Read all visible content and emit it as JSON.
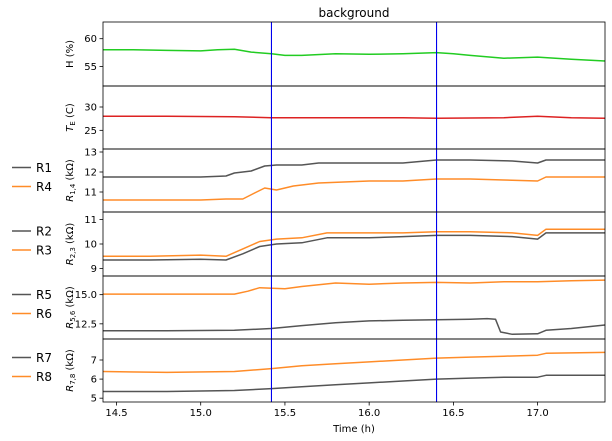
{
  "chart_data": {
    "type": "line",
    "title": "background",
    "xlabel": "Time (h)",
    "xlim": [
      14.42,
      17.4
    ],
    "x_ticks": [
      14.5,
      15.0,
      15.5,
      16.0,
      16.5,
      17.0
    ],
    "x_tick_labels": [
      "14.5",
      "15.0",
      "15.5",
      "16.0",
      "16.5",
      "17.0"
    ],
    "vlines": [
      15.42,
      16.4
    ],
    "vline_color": "#0000ee",
    "grid": false,
    "legend_position": "left",
    "panels": [
      {
        "id": "humidity",
        "ylabel": "H (%)",
        "ylim": [
          51.5,
          63.0
        ],
        "y_ticks": [
          55,
          60
        ],
        "y_tick_labels": [
          "55",
          "60"
        ],
        "legend": [],
        "series": [
          {
            "name": "",
            "color": "#22cc22",
            "points": [
              [
                14.42,
                58.0
              ],
              [
                14.6,
                58.0
              ],
              [
                14.8,
                57.9
              ],
              [
                15.0,
                57.8
              ],
              [
                15.1,
                58.0
              ],
              [
                15.2,
                58.1
              ],
              [
                15.3,
                57.6
              ],
              [
                15.42,
                57.3
              ],
              [
                15.5,
                57.0
              ],
              [
                15.6,
                57.0
              ],
              [
                15.8,
                57.3
              ],
              [
                16.0,
                57.2
              ],
              [
                16.2,
                57.3
              ],
              [
                16.4,
                57.5
              ],
              [
                16.5,
                57.3
              ],
              [
                16.6,
                57.0
              ],
              [
                16.8,
                56.5
              ],
              [
                17.0,
                56.7
              ],
              [
                17.2,
                56.3
              ],
              [
                17.4,
                56.0
              ]
            ]
          }
        ]
      },
      {
        "id": "temperature",
        "ylabel": "T_E (C)",
        "ylim": [
          21.0,
          34.5
        ],
        "y_ticks": [
          25,
          30
        ],
        "y_tick_labels": [
          "25",
          "30"
        ],
        "legend": [],
        "series": [
          {
            "name": "",
            "color": "#dd2222",
            "points": [
              [
                14.42,
                28.0
              ],
              [
                14.8,
                28.0
              ],
              [
                15.2,
                27.9
              ],
              [
                15.42,
                27.7
              ],
              [
                15.8,
                27.7
              ],
              [
                16.2,
                27.7
              ],
              [
                16.4,
                27.6
              ],
              [
                16.8,
                27.7
              ],
              [
                17.0,
                28.0
              ],
              [
                17.2,
                27.7
              ],
              [
                17.4,
                27.6
              ]
            ]
          }
        ]
      },
      {
        "id": "r14",
        "ylabel": "R_1,4 (kΩ)",
        "ylim": [
          10.0,
          13.15
        ],
        "y_ticks": [
          11,
          12,
          13
        ],
        "y_tick_labels": [
          "11",
          "12",
          "13"
        ],
        "legend": [
          "R1",
          "R4"
        ],
        "series": [
          {
            "name": "R1",
            "color": "#555555",
            "points": [
              [
                14.42,
                11.75
              ],
              [
                14.7,
                11.75
              ],
              [
                15.0,
                11.75
              ],
              [
                15.15,
                11.8
              ],
              [
                15.2,
                11.95
              ],
              [
                15.3,
                12.05
              ],
              [
                15.38,
                12.3
              ],
              [
                15.45,
                12.35
              ],
              [
                15.6,
                12.35
              ],
              [
                15.7,
                12.45
              ],
              [
                16.0,
                12.45
              ],
              [
                16.2,
                12.45
              ],
              [
                16.4,
                12.6
              ],
              [
                16.6,
                12.6
              ],
              [
                16.85,
                12.55
              ],
              [
                17.0,
                12.45
              ],
              [
                17.05,
                12.6
              ],
              [
                17.2,
                12.6
              ],
              [
                17.4,
                12.6
              ]
            ]
          },
          {
            "name": "R4",
            "color": "#ff8c28",
            "points": [
              [
                14.42,
                10.6
              ],
              [
                14.7,
                10.6
              ],
              [
                15.0,
                10.6
              ],
              [
                15.15,
                10.65
              ],
              [
                15.25,
                10.65
              ],
              [
                15.32,
                10.95
              ],
              [
                15.38,
                11.2
              ],
              [
                15.45,
                11.1
              ],
              [
                15.55,
                11.3
              ],
              [
                15.7,
                11.45
              ],
              [
                16.0,
                11.55
              ],
              [
                16.2,
                11.55
              ],
              [
                16.4,
                11.65
              ],
              [
                16.6,
                11.65
              ],
              [
                16.8,
                11.6
              ],
              [
                17.0,
                11.55
              ],
              [
                17.05,
                11.75
              ],
              [
                17.2,
                11.75
              ],
              [
                17.4,
                11.75
              ]
            ]
          }
        ]
      },
      {
        "id": "r23",
        "ylabel": "R_2,3 (kΩ)",
        "ylim": [
          8.7,
          11.3
        ],
        "y_ticks": [
          9,
          10,
          11
        ],
        "y_tick_labels": [
          "9",
          "10",
          "11"
        ],
        "legend": [
          "R2",
          "R3"
        ],
        "series": [
          {
            "name": "R2",
            "color": "#555555",
            "points": [
              [
                14.42,
                9.35
              ],
              [
                14.7,
                9.35
              ],
              [
                15.0,
                9.38
              ],
              [
                15.15,
                9.35
              ],
              [
                15.25,
                9.6
              ],
              [
                15.35,
                9.9
              ],
              [
                15.45,
                10.0
              ],
              [
                15.6,
                10.05
              ],
              [
                15.75,
                10.25
              ],
              [
                16.0,
                10.25
              ],
              [
                16.2,
                10.3
              ],
              [
                16.4,
                10.35
              ],
              [
                16.6,
                10.35
              ],
              [
                16.85,
                10.3
              ],
              [
                17.0,
                10.2
              ],
              [
                17.05,
                10.45
              ],
              [
                17.2,
                10.45
              ],
              [
                17.4,
                10.45
              ]
            ]
          },
          {
            "name": "R3",
            "color": "#ff8c28",
            "points": [
              [
                14.42,
                9.5
              ],
              [
                14.7,
                9.5
              ],
              [
                15.0,
                9.55
              ],
              [
                15.15,
                9.5
              ],
              [
                15.25,
                9.8
              ],
              [
                15.35,
                10.1
              ],
              [
                15.45,
                10.2
              ],
              [
                15.6,
                10.25
              ],
              [
                15.75,
                10.45
              ],
              [
                16.0,
                10.45
              ],
              [
                16.2,
                10.45
              ],
              [
                16.4,
                10.5
              ],
              [
                16.6,
                10.5
              ],
              [
                16.85,
                10.45
              ],
              [
                17.0,
                10.35
              ],
              [
                17.05,
                10.6
              ],
              [
                17.2,
                10.6
              ],
              [
                17.4,
                10.6
              ]
            ]
          }
        ]
      },
      {
        "id": "r56",
        "ylabel": "R_5,6 (kΩ)",
        "ylim": [
          11.2,
          16.6
        ],
        "y_ticks": [
          12.5,
          15.0
        ],
        "y_tick_labels": [
          "12.5",
          "15.0"
        ],
        "legend": [
          "R5",
          "R6"
        ],
        "series": [
          {
            "name": "R5",
            "color": "#555555",
            "points": [
              [
                14.42,
                11.9
              ],
              [
                14.8,
                11.9
              ],
              [
                15.2,
                11.95
              ],
              [
                15.42,
                12.1
              ],
              [
                15.6,
                12.35
              ],
              [
                15.8,
                12.6
              ],
              [
                16.0,
                12.75
              ],
              [
                16.2,
                12.8
              ],
              [
                16.4,
                12.85
              ],
              [
                16.6,
                12.9
              ],
              [
                16.7,
                12.95
              ],
              [
                16.75,
                12.9
              ],
              [
                16.78,
                11.8
              ],
              [
                16.85,
                11.6
              ],
              [
                17.0,
                11.65
              ],
              [
                17.05,
                11.95
              ],
              [
                17.2,
                12.1
              ],
              [
                17.4,
                12.4
              ]
            ]
          },
          {
            "name": "R6",
            "color": "#ff8c28",
            "points": [
              [
                14.42,
                15.05
              ],
              [
                14.8,
                15.05
              ],
              [
                15.2,
                15.05
              ],
              [
                15.28,
                15.3
              ],
              [
                15.35,
                15.6
              ],
              [
                15.5,
                15.5
              ],
              [
                15.6,
                15.7
              ],
              [
                15.8,
                16.0
              ],
              [
                16.0,
                15.9
              ],
              [
                16.2,
                16.0
              ],
              [
                16.4,
                16.05
              ],
              [
                16.6,
                16.0
              ],
              [
                16.8,
                16.1
              ],
              [
                17.0,
                16.1
              ],
              [
                17.2,
                16.2
              ],
              [
                17.4,
                16.25
              ]
            ]
          }
        ]
      },
      {
        "id": "r78",
        "ylabel": "R_7,8 (kΩ)",
        "ylim": [
          4.8,
          8.1
        ],
        "y_ticks": [
          5,
          6,
          7
        ],
        "y_tick_labels": [
          "5",
          "6",
          "7"
        ],
        "legend": [
          "R7",
          "R8"
        ],
        "series": [
          {
            "name": "R7",
            "color": "#555555",
            "points": [
              [
                14.42,
                5.35
              ],
              [
                14.8,
                5.35
              ],
              [
                15.2,
                5.4
              ],
              [
                15.42,
                5.5
              ],
              [
                15.6,
                5.6
              ],
              [
                15.8,
                5.7
              ],
              [
                16.0,
                5.8
              ],
              [
                16.2,
                5.9
              ],
              [
                16.4,
                6.0
              ],
              [
                16.6,
                6.05
              ],
              [
                16.8,
                6.1
              ],
              [
                17.0,
                6.1
              ],
              [
                17.05,
                6.2
              ],
              [
                17.4,
                6.2
              ]
            ]
          },
          {
            "name": "R8",
            "color": "#ff8c28",
            "points": [
              [
                14.42,
                6.4
              ],
              [
                14.8,
                6.35
              ],
              [
                15.2,
                6.4
              ],
              [
                15.42,
                6.55
              ],
              [
                15.6,
                6.7
              ],
              [
                15.8,
                6.8
              ],
              [
                16.0,
                6.9
              ],
              [
                16.2,
                7.0
              ],
              [
                16.4,
                7.1
              ],
              [
                16.6,
                7.15
              ],
              [
                16.8,
                7.2
              ],
              [
                17.0,
                7.25
              ],
              [
                17.05,
                7.35
              ],
              [
                17.4,
                7.4
              ]
            ]
          }
        ]
      }
    ]
  }
}
